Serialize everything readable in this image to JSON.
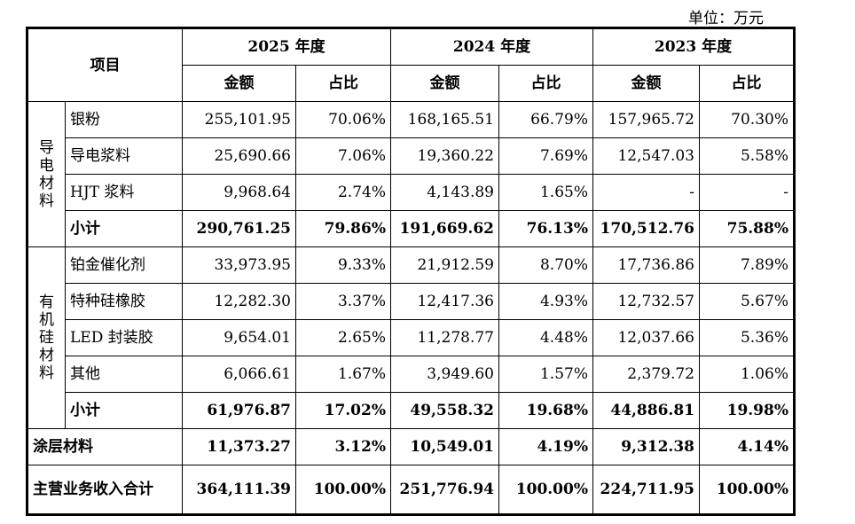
{
  "unit": "单位：万元",
  "header": {
    "item": "项目",
    "years": [
      "2025 年度",
      "2024 年度",
      "2023 年度"
    ],
    "amount": "金额",
    "ratio": "占比"
  },
  "groups": [
    {
      "name": "导电材料",
      "rows": [
        {
          "label": "银粉",
          "v": [
            "255,101.95",
            "70.06%",
            "168,165.51",
            "66.79%",
            "157,965.72",
            "70.30%"
          ]
        },
        {
          "label": "导电浆料",
          "v": [
            "25,690.66",
            "7.06%",
            "19,360.22",
            "7.69%",
            "12,547.03",
            "5.58%"
          ]
        },
        {
          "label": "HJT 浆料",
          "v": [
            "9,968.64",
            "2.74%",
            "4,143.89",
            "1.65%",
            "-",
            "-"
          ]
        }
      ],
      "subtotal": {
        "label": "小计",
        "v": [
          "290,761.25",
          "79.86%",
          "191,669.62",
          "76.13%",
          "170,512.76",
          "75.88%"
        ]
      }
    },
    {
      "name": "有机硅材料",
      "rows": [
        {
          "label": "铂金催化剂",
          "v": [
            "33,973.95",
            "9.33%",
            "21,912.59",
            "8.70%",
            "17,736.86",
            "7.89%"
          ]
        },
        {
          "label": "特种硅橡胶",
          "v": [
            "12,282.30",
            "3.37%",
            "12,417.36",
            "4.93%",
            "12,732.57",
            "5.67%"
          ]
        },
        {
          "label": "LED 封装胶",
          "v": [
            "9,654.01",
            "2.65%",
            "11,278.77",
            "4.48%",
            "12,037.66",
            "5.36%"
          ]
        },
        {
          "label": "其他",
          "v": [
            "6,066.61",
            "1.67%",
            "3,949.60",
            "1.57%",
            "2,379.72",
            "1.06%"
          ]
        }
      ],
      "subtotal": {
        "label": "小计",
        "v": [
          "61,976.87",
          "17.02%",
          "49,558.32",
          "19.68%",
          "44,886.81",
          "19.98%"
        ]
      }
    }
  ],
  "coating": {
    "label": "涂层材料",
    "v": [
      "11,373.27",
      "3.12%",
      "10,549.01",
      "4.19%",
      "9,312.38",
      "4.14%"
    ]
  },
  "total": {
    "label": "主营业务收入合计",
    "v": [
      "364,111.39",
      "100.00%",
      "251,776.94",
      "100.00%",
      "224,711.95",
      "100.00%"
    ]
  }
}
